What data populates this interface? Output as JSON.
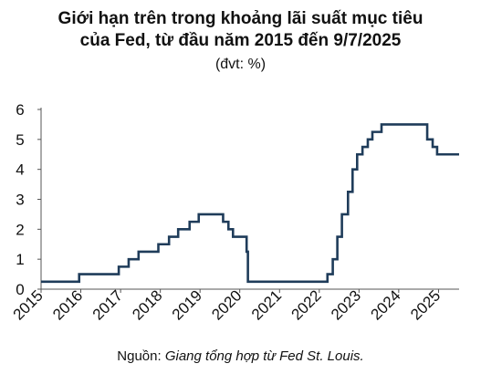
{
  "title_line1": "Giới hạn trên trong khoảng lãi suất mục tiêu",
  "title_line2": "của Fed, từ đầu năm 2015 đến 9/7/2025",
  "unit": "(đvt: %)",
  "source_prefix": "Nguồn: ",
  "source_text": "Giang tổng hợp từ Fed St. Louis.",
  "colors": {
    "line": "#1f3c5a",
    "axis": "#555555"
  },
  "chart_data": {
    "type": "line",
    "xlabel": "",
    "ylabel": "",
    "xlim": [
      "2015-01-01",
      "2025-07-09"
    ],
    "ylim": [
      0,
      6
    ],
    "yticks": [
      0,
      1,
      2,
      3,
      4,
      5,
      6
    ],
    "xtick_labels": [
      "2015",
      "2016",
      "2017",
      "2018",
      "2019",
      "2020",
      "2021",
      "2022",
      "2023",
      "2024",
      "2025"
    ],
    "grid": false,
    "series": [
      {
        "step": "post",
        "points": [
          [
            "2015-01-01",
            0.25
          ],
          [
            "2015-12-17",
            0.5
          ],
          [
            "2016-12-15",
            0.75
          ],
          [
            "2017-03-16",
            1.0
          ],
          [
            "2017-06-15",
            1.25
          ],
          [
            "2017-12-14",
            1.5
          ],
          [
            "2018-03-22",
            1.75
          ],
          [
            "2018-06-14",
            2.0
          ],
          [
            "2018-09-27",
            2.25
          ],
          [
            "2018-12-20",
            2.5
          ],
          [
            "2019-08-01",
            2.25
          ],
          [
            "2019-09-19",
            2.0
          ],
          [
            "2019-10-31",
            1.75
          ],
          [
            "2020-03-04",
            1.25
          ],
          [
            "2020-03-16",
            0.25
          ],
          [
            "2022-03-17",
            0.5
          ],
          [
            "2022-05-05",
            1.0
          ],
          [
            "2022-06-16",
            1.75
          ],
          [
            "2022-07-28",
            2.5
          ],
          [
            "2022-09-22",
            3.25
          ],
          [
            "2022-11-03",
            4.0
          ],
          [
            "2022-12-15",
            4.5
          ],
          [
            "2023-02-02",
            4.75
          ],
          [
            "2023-03-23",
            5.0
          ],
          [
            "2023-05-04",
            5.25
          ],
          [
            "2023-07-27",
            5.5
          ],
          [
            "2024-09-19",
            5.0
          ],
          [
            "2024-11-08",
            4.75
          ],
          [
            "2024-12-19",
            4.5
          ],
          [
            "2025-07-09",
            4.5
          ]
        ]
      }
    ]
  }
}
